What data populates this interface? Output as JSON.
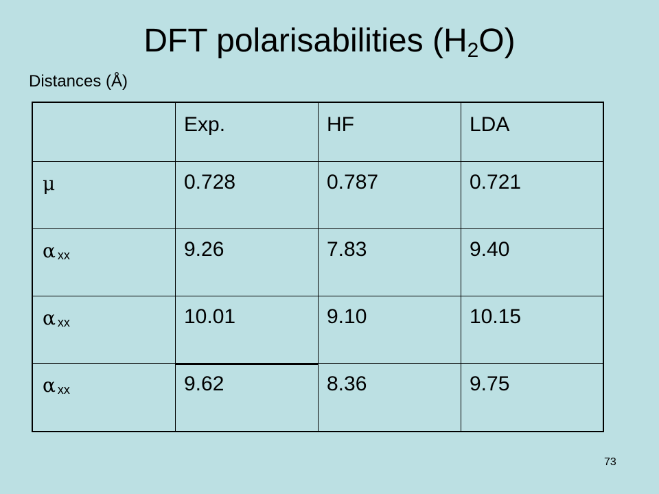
{
  "title": {
    "main": "DFT polarisabilities (H",
    "sub": "2",
    "end": "O)"
  },
  "subtitle": "Distances (Å)",
  "table": {
    "headers": [
      "",
      "Exp.",
      "HF",
      "LDA"
    ],
    "rows": [
      {
        "symbol": "μ",
        "subscript": "",
        "values": [
          "0.728",
          "0.787",
          "0.721"
        ]
      },
      {
        "symbol": "α",
        "subscript": "xx",
        "values": [
          "9.26",
          "7.83",
          "9.40"
        ]
      },
      {
        "symbol": "α",
        "subscript": "xx",
        "values": [
          "10.01",
          "9.10",
          "10.15"
        ]
      },
      {
        "symbol": "α",
        "subscript": "xx",
        "values": [
          "9.62",
          "8.36",
          "9.75"
        ]
      }
    ]
  },
  "page_number": "73"
}
